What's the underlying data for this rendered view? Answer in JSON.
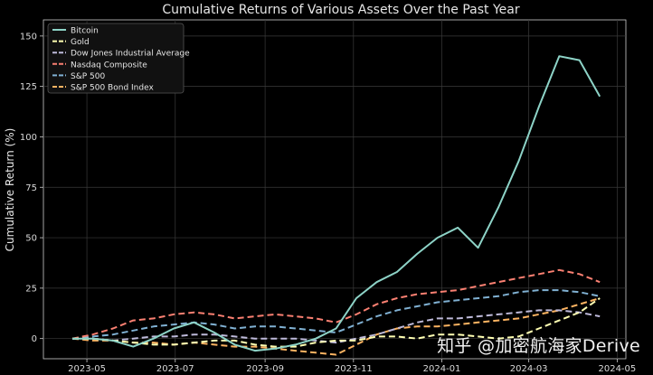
{
  "chart_data": {
    "type": "line",
    "title": "Cumulative Returns of Various Assets Over the Past Year",
    "xlabel": "",
    "ylabel": "Cumulative Return (%)",
    "ylim": [
      -10,
      158
    ],
    "xlim": [
      "2023-04-01",
      "2024-05-07"
    ],
    "grid": true,
    "legend_position": "top-left",
    "xticks": [
      "2023-05",
      "2023-07",
      "2023-09",
      "2023-11",
      "2024-01",
      "2024-03",
      "2024-05"
    ],
    "yticks": [
      0,
      25,
      50,
      75,
      100,
      125,
      150
    ],
    "x": [
      "2023-04-21",
      "2023-05-05",
      "2023-05-19",
      "2023-06-02",
      "2023-06-16",
      "2023-06-30",
      "2023-07-14",
      "2023-07-28",
      "2023-08-11",
      "2023-08-25",
      "2023-09-08",
      "2023-09-22",
      "2023-10-06",
      "2023-10-20",
      "2023-11-03",
      "2023-11-17",
      "2023-12-01",
      "2023-12-15",
      "2023-12-29",
      "2024-01-12",
      "2024-01-26",
      "2024-02-09",
      "2024-02-23",
      "2024-03-08",
      "2024-03-22",
      "2024-04-05",
      "2024-04-19"
    ],
    "series": [
      {
        "name": "Bitcoin",
        "color": "#8dd3c7",
        "dash": false,
        "values": [
          0,
          0,
          -1,
          -4,
          0,
          5,
          8,
          3,
          -3,
          -6,
          -5,
          -3,
          0,
          5,
          20,
          28,
          33,
          42,
          50,
          55,
          45,
          65,
          88,
          115,
          140,
          138,
          120
        ]
      },
      {
        "name": "Gold",
        "color": "#ffffb3",
        "dash": true,
        "values": [
          0,
          0,
          -1,
          -2,
          -3,
          -3,
          -2,
          -1,
          -1,
          -3,
          -4,
          -4,
          -2,
          -1,
          -1,
          1,
          1,
          0,
          2,
          2,
          1,
          0,
          1,
          5,
          9,
          13,
          20
        ]
      },
      {
        "name": "Dow Jones Industrial Average",
        "color": "#bebada",
        "dash": true,
        "values": [
          0,
          0,
          -1,
          0,
          1,
          1,
          2,
          2,
          1,
          0,
          0,
          0,
          -1,
          -2,
          0,
          2,
          5,
          8,
          10,
          10,
          11,
          12,
          13,
          14,
          14,
          13,
          11
        ]
      },
      {
        "name": "Nasdaq Composite",
        "color": "#fb8072",
        "dash": true,
        "values": [
          0,
          2,
          5,
          9,
          10,
          12,
          13,
          12,
          10,
          11,
          12,
          11,
          10,
          8,
          12,
          17,
          20,
          22,
          23,
          24,
          26,
          28,
          30,
          32,
          34,
          32,
          28
        ]
      },
      {
        "name": "S&P 500",
        "color": "#80b1d3",
        "dash": true,
        "values": [
          0,
          1,
          2,
          4,
          6,
          7,
          8,
          7,
          5,
          6,
          6,
          5,
          4,
          3,
          7,
          11,
          14,
          16,
          18,
          19,
          20,
          21,
          23,
          24,
          24,
          23,
          21
        ]
      },
      {
        "name": "S&P 500 Bond Index",
        "color": "#fdb462",
        "dash": true,
        "values": [
          0,
          -1,
          -1,
          -2,
          -2,
          -3,
          -2,
          -3,
          -4,
          -4,
          -5,
          -6,
          -7,
          -8,
          -3,
          2,
          5,
          6,
          6,
          7,
          8,
          9,
          10,
          12,
          14,
          17,
          20
        ]
      }
    ]
  },
  "watermark": "知乎 @加密航海家Derive"
}
